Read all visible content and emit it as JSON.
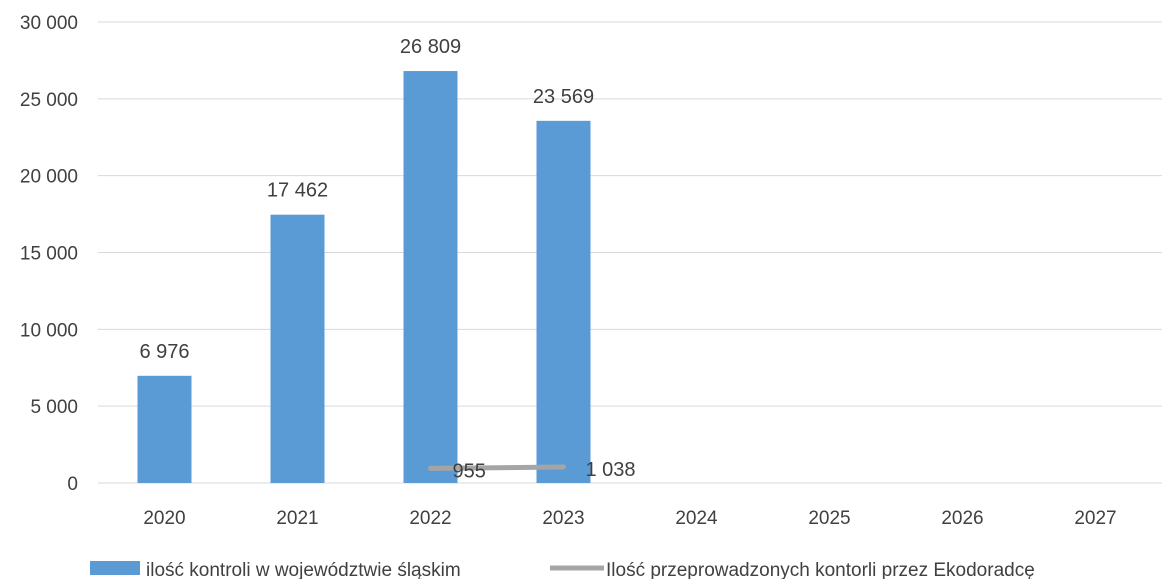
{
  "chart_data": {
    "type": "bar",
    "categories": [
      "2020",
      "2021",
      "2022",
      "2023",
      "2024",
      "2025",
      "2026",
      "2027"
    ],
    "ylim": [
      0,
      30000
    ],
    "yticks": [
      0,
      5000,
      10000,
      15000,
      20000,
      25000,
      30000
    ],
    "ytick_labels": [
      "0",
      "5 000",
      "10 000",
      "15 000",
      "20 000",
      "25 000",
      "30 000"
    ],
    "grid": true,
    "legend_position": "bottom",
    "series": [
      {
        "name": "ilość kontroli w województwie śląskim",
        "type": "bar",
        "color": "#5b9bd5",
        "values": [
          6976,
          17462,
          26809,
          23569,
          null,
          null,
          null,
          null
        ],
        "labels": [
          "6 976",
          "17 462",
          "26 809",
          "23 569",
          "",
          "",
          "",
          ""
        ]
      },
      {
        "name": "Ilość przeprowadzonych kontorli przez Ekodoradcę",
        "type": "line",
        "color": "#a5a5a5",
        "values": [
          null,
          null,
          955,
          1038,
          null,
          null,
          null,
          null
        ],
        "labels": [
          "",
          "",
          "955",
          "1 038",
          "",
          "",
          "",
          ""
        ]
      }
    ]
  }
}
